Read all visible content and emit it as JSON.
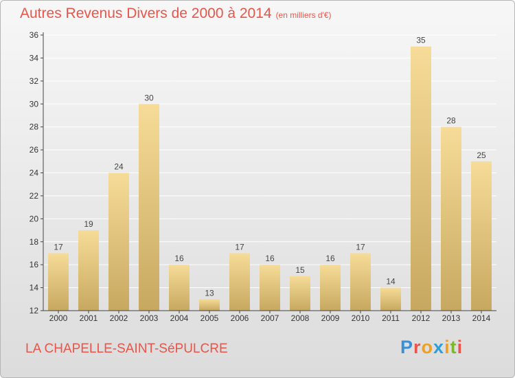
{
  "header": {
    "title": "Autres Revenus Divers de 2000 à 2014",
    "unit": "(en milliers d'€)"
  },
  "footer": {
    "place": "LA CHAPELLE-SAINT-SéPULCRE",
    "logo_text": "Proxiti"
  },
  "colors": {
    "title": "#e8554a",
    "bar_top": "#f6dc98",
    "bar_bottom": "#c7a860",
    "grid": "#ffffff",
    "axis": "#444444"
  },
  "chart_data": {
    "type": "bar",
    "title": "Autres Revenus Divers de 2000 à 2014",
    "xlabel": "",
    "ylabel": "",
    "categories": [
      "2000",
      "2001",
      "2002",
      "2003",
      "2004",
      "2005",
      "2006",
      "2007",
      "2008",
      "2009",
      "2010",
      "2011",
      "2012",
      "2013",
      "2014"
    ],
    "values": [
      17,
      19,
      24,
      30,
      16,
      13,
      17,
      16,
      15,
      16,
      17,
      14,
      35,
      28,
      25
    ],
    "ylim": [
      12,
      36
    ],
    "yticks": [
      12,
      14,
      16,
      18,
      20,
      22,
      24,
      26,
      28,
      30,
      32,
      34,
      36
    ],
    "grid": true,
    "data_labels": true
  }
}
